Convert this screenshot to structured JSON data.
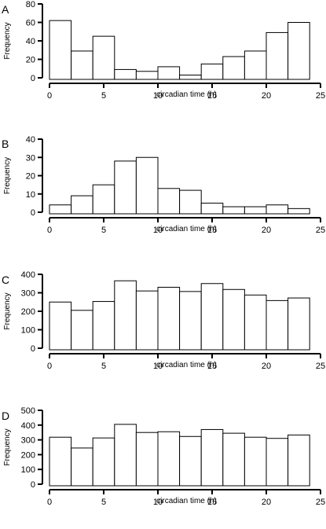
{
  "chart_data": [
    {
      "type": "bar",
      "panel_label": "A",
      "bin_edges": [
        0,
        2,
        4,
        6,
        8,
        10,
        12,
        14,
        16,
        18,
        20,
        22,
        24
      ],
      "values": [
        62,
        29,
        45,
        9,
        7,
        12,
        3,
        15,
        23,
        29,
        49,
        60
      ],
      "xlabel": "circadian time (h)",
      "ylabel": "Frequency",
      "xlim": [
        0,
        25
      ],
      "ylim": [
        0,
        80
      ],
      "xticks": [
        0,
        5,
        10,
        15,
        20,
        25
      ],
      "yticks": [
        0,
        20,
        40,
        60,
        80
      ],
      "grid": false
    },
    {
      "type": "bar",
      "panel_label": "B",
      "bin_edges": [
        0,
        2,
        4,
        6,
        8,
        10,
        12,
        14,
        16,
        18,
        20,
        22,
        24
      ],
      "values": [
        4,
        9,
        15,
        28,
        30,
        13,
        12,
        5,
        3,
        3,
        4,
        2
      ],
      "xlabel": "circadian time (h)",
      "ylabel": "Frequency",
      "xlim": [
        0,
        25
      ],
      "ylim": [
        0,
        40
      ],
      "xticks": [
        0,
        5,
        10,
        15,
        20,
        25
      ],
      "yticks": [
        0,
        10,
        20,
        30,
        40
      ],
      "grid": false
    },
    {
      "type": "bar",
      "panel_label": "C",
      "bin_edges": [
        0,
        2,
        4,
        6,
        8,
        10,
        12,
        14,
        16,
        18,
        20,
        22,
        24
      ],
      "values": [
        250,
        205,
        253,
        365,
        310,
        330,
        307,
        350,
        318,
        288,
        258,
        272
      ],
      "xlabel": "circadian time (h)",
      "ylabel": "Frequency",
      "xlim": [
        0,
        25
      ],
      "ylim": [
        0,
        400
      ],
      "xticks": [
        0,
        5,
        10,
        15,
        20,
        25
      ],
      "yticks": [
        0,
        100,
        200,
        300,
        400
      ],
      "grid": false
    },
    {
      "type": "bar",
      "panel_label": "D",
      "bin_edges": [
        0,
        2,
        4,
        6,
        8,
        10,
        12,
        14,
        16,
        18,
        20,
        22,
        24
      ],
      "values": [
        318,
        245,
        313,
        405,
        350,
        355,
        323,
        370,
        345,
        318,
        310,
        333
      ],
      "xlabel": "circadian time (h)",
      "ylabel": "Frequency",
      "xlim": [
        0,
        25
      ],
      "ylim": [
        0,
        500
      ],
      "xticks": [
        0,
        5,
        10,
        15,
        20,
        25
      ],
      "yticks": [
        0,
        100,
        200,
        300,
        400,
        500
      ],
      "grid": false
    }
  ]
}
